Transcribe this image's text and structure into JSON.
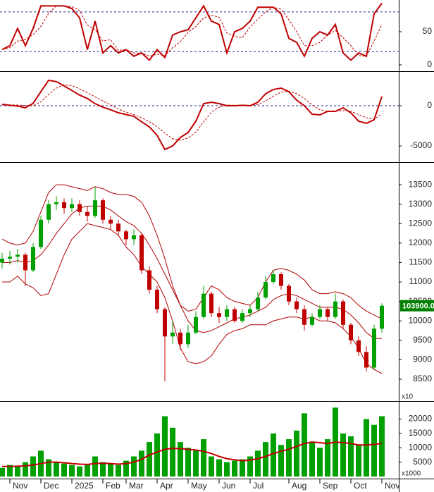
{
  "chart_data": [
    {
      "type": "line",
      "ylim": [
        -8.5,
        97.9
      ],
      "yticks": [
        0,
        50
      ],
      "reference_lines": [
        20,
        80
      ],
      "series": [
        {
          "color": "#c00000",
          "dashed": false,
          "values": [
            23,
            29,
            55,
            29,
            55,
            89,
            89,
            89,
            89,
            85,
            71,
            23,
            66,
            18,
            29,
            18,
            23,
            13,
            18,
            7,
            23,
            11,
            45,
            50,
            53,
            71,
            89,
            66,
            61,
            18,
            50,
            55,
            66,
            87,
            87,
            87,
            77,
            40,
            34,
            13,
            40,
            50,
            45,
            61,
            18,
            7,
            18,
            13,
            77,
            93
          ]
        },
        {
          "color": "#c00000",
          "dashed": true,
          "values": [
            23,
            26,
            36,
            38,
            46,
            58,
            78,
            89,
            89,
            88,
            82,
            60,
            53,
            36,
            38,
            22,
            23,
            18,
            18,
            13,
            16,
            14,
            26,
            35,
            49,
            58,
            71,
            75,
            72,
            48,
            43,
            41,
            57,
            69,
            80,
            87,
            84,
            68,
            50,
            29,
            29,
            34,
            45,
            52,
            41,
            29,
            14,
            13,
            36,
            61
          ]
        }
      ]
    },
    {
      "type": "line",
      "ylim": [
        -6840,
        4120
      ],
      "yticks": [
        -5000,
        0
      ],
      "reference_lines": [
        0
      ],
      "series": [
        {
          "color": "#c00000",
          "dashed": false,
          "values": [
            180,
            50,
            -50,
            -260,
            300,
            1750,
            3160,
            3000,
            2460,
            1900,
            1320,
            900,
            260,
            -180,
            -500,
            -880,
            -1100,
            -1320,
            -2000,
            -2630,
            -3680,
            -5440,
            -5000,
            -3950,
            -3330,
            -1930,
            260,
            440,
            260,
            0,
            0,
            50,
            0,
            440,
            1490,
            2020,
            2190,
            1750,
            700,
            0,
            -1050,
            -1140,
            -700,
            -700,
            -260,
            -880,
            -1930,
            -2190,
            -1750,
            1140
          ]
        },
        {
          "color": "#c00000",
          "dashed": true,
          "values": [
            100,
            100,
            80,
            20,
            0,
            500,
            1400,
            2200,
            2600,
            2500,
            2100,
            1600,
            1100,
            600,
            100,
            -400,
            -800,
            -1100,
            -1500,
            -2000,
            -2600,
            -3400,
            -4100,
            -4300,
            -4000,
            -3300,
            -2000,
            -800,
            -200,
            100,
            50,
            50,
            50,
            150,
            600,
            1200,
            1700,
            1800,
            1500,
            900,
            100,
            -500,
            -700,
            -700,
            -600,
            -700,
            -1100,
            -1500,
            -1700,
            -1000
          ]
        }
      ]
    },
    {
      "type": "candlestick",
      "ylim": [
        7975,
        14045
      ],
      "yticks": [
        8500,
        9000,
        9500,
        10000,
        10500,
        11000,
        11500,
        12000,
        12500,
        13000,
        13500
      ],
      "unit_label": "x10",
      "up_color": "#00a000",
      "down_color": "#c00000",
      "last_price": {
        "value": 10390,
        "label": "103900.0"
      },
      "open": [
        11500,
        11600,
        11650,
        11700,
        11300,
        11900,
        12600,
        13000,
        13050,
        12900,
        13000,
        12800,
        12700,
        13100,
        12600,
        12500,
        12300,
        12100,
        12200,
        11300,
        10800,
        10300,
        9600,
        9700,
        9400,
        9700,
        10100,
        10700,
        10200,
        10100,
        10300,
        10000,
        10200,
        10300,
        10600,
        11000,
        11200,
        10900,
        10500,
        10300,
        9900,
        10100,
        10300,
        10100,
        10500,
        9900,
        9500,
        9200,
        8800,
        9800
      ],
      "high": [
        11750,
        11800,
        11850,
        11750,
        12000,
        12700,
        13100,
        13200,
        13150,
        13150,
        13100,
        12950,
        13450,
        13150,
        12700,
        12600,
        12350,
        12350,
        12250,
        11400,
        10900,
        10350,
        10000,
        9800,
        9900,
        10250,
        10900,
        10750,
        10350,
        10400,
        10350,
        10300,
        10400,
        10750,
        11150,
        11300,
        11250,
        10950,
        10600,
        10400,
        10200,
        10400,
        10350,
        10700,
        10550,
        9950,
        9600,
        9350,
        9900,
        10450
      ],
      "low": [
        11350,
        11450,
        11500,
        10900,
        11250,
        11850,
        12500,
        12850,
        12750,
        12800,
        12700,
        12550,
        12650,
        12500,
        12350,
        12200,
        11950,
        11950,
        11200,
        10700,
        10200,
        8450,
        9400,
        9250,
        9300,
        9650,
        10050,
        10100,
        9950,
        10000,
        9950,
        9950,
        10100,
        10250,
        10550,
        10950,
        10800,
        10400,
        10200,
        9750,
        9850,
        10050,
        10000,
        10050,
        9800,
        9400,
        9100,
        8700,
        8750,
        9700
      ],
      "close": [
        11600,
        11650,
        11700,
        11300,
        11900,
        12600,
        13000,
        13050,
        12900,
        13000,
        12800,
        12700,
        13100,
        12600,
        12500,
        12300,
        12100,
        12200,
        11300,
        10800,
        10300,
        9600,
        9700,
        9400,
        9700,
        10100,
        10700,
        10200,
        10100,
        10300,
        10000,
        10200,
        10300,
        10600,
        11000,
        11200,
        10900,
        10500,
        10300,
        9900,
        10100,
        10300,
        10100,
        10500,
        9900,
        9500,
        9200,
        8800,
        9800,
        10390
      ],
      "series": [
        {
          "color": "#b00000",
          "dashed": false,
          "values": [
            12100,
            12000,
            11950,
            12000,
            12300,
            12800,
            13300,
            13500,
            13500,
            13450,
            13400,
            13350,
            13450,
            13400,
            13300,
            13250,
            13250,
            13200,
            13050,
            12700,
            12200,
            11600,
            10900,
            10400,
            10250,
            10300,
            10600,
            10900,
            10800,
            10600,
            10500,
            10450,
            10400,
            10600,
            11000,
            11300,
            11350,
            11300,
            11200,
            11050,
            10800,
            10700,
            10700,
            10750,
            10700,
            10600,
            10400,
            10250,
            10150,
            10050
          ]
        },
        {
          "color": "#b00000",
          "dashed": false,
          "values": [
            11500,
            11500,
            11550,
            11500,
            11550,
            11700,
            11950,
            12250,
            12500,
            12750,
            12900,
            12950,
            12950,
            12950,
            12850,
            12700,
            12550,
            12450,
            12250,
            11950,
            11600,
            11200,
            10800,
            10400,
            10000,
            9750,
            9700,
            9750,
            9850,
            9950,
            10050,
            10100,
            10150,
            10250,
            10350,
            10550,
            10650,
            10700,
            10650,
            10550,
            10450,
            10350,
            10350,
            10350,
            10300,
            10150,
            9950,
            9700,
            9550,
            9550
          ]
        },
        {
          "color": "#b00000",
          "dashed": false,
          "values": [
            11000,
            11000,
            11150,
            10950,
            10850,
            10650,
            10700,
            11200,
            11700,
            12100,
            12300,
            12500,
            12450,
            12400,
            12350,
            12200,
            11900,
            11700,
            11400,
            11200,
            11000,
            10600,
            10000,
            9300,
            8950,
            8900,
            8950,
            9100,
            9400,
            9650,
            9750,
            9800,
            9900,
            9900,
            9900,
            10000,
            10050,
            10100,
            10100,
            10050,
            10100,
            10000,
            10000,
            9950,
            9800,
            9600,
            9300,
            8900,
            8750,
            8650
          ]
        }
      ]
    },
    {
      "type": "bar",
      "ylim": [
        0,
        25300
      ],
      "yticks": [
        5000,
        10000,
        15000,
        20000
      ],
      "unit_label": "x1000",
      "color": "#00a000",
      "categories": [
        null,
        "Nov",
        null,
        null,
        null,
        "Dec",
        null,
        null,
        null,
        "2025",
        null,
        null,
        null,
        "Feb",
        null,
        null,
        "Mar",
        null,
        null,
        null,
        "Apr",
        null,
        null,
        null,
        "May",
        null,
        null,
        null,
        "Jun",
        null,
        null,
        null,
        "Jul",
        null,
        null,
        null,
        null,
        "Aug",
        null,
        null,
        null,
        "Sep",
        null,
        null,
        null,
        "Oct",
        null,
        null,
        null,
        "Nov"
      ],
      "values": [
        3000,
        4000,
        3500,
        5000,
        7000,
        9000,
        6000,
        5000,
        4500,
        4000,
        3500,
        4000,
        7000,
        5000,
        4500,
        4000,
        5500,
        7000,
        9000,
        12000,
        15000,
        21000,
        17000,
        12000,
        10000,
        9000,
        13000,
        7000,
        6000,
        5000,
        5500,
        6000,
        7000,
        9000,
        12000,
        15000,
        11000,
        13000,
        16000,
        22000,
        12000,
        10000,
        13000,
        24000,
        15000,
        14000,
        11000,
        20000,
        18000,
        21000
      ],
      "series": [
        {
          "color": "#c00000",
          "dashed": false,
          "values": [
            3500,
            3500,
            3600,
            3700,
            4000,
            4500,
            5000,
            5000,
            4800,
            4500,
            4300,
            4200,
            4500,
            4600,
            4500,
            4300,
            4500,
            5000,
            6000,
            7500,
            8500,
            9500,
            9800,
            9700,
            9500,
            9200,
            8800,
            8000,
            7000,
            6200,
            5800,
            5500,
            5700,
            6200,
            7000,
            8000,
            8800,
            9500,
            10500,
            11500,
            12000,
            11800,
            11500,
            12000,
            11800,
            11500,
            11000,
            11000,
            11200,
            11500
          ]
        }
      ]
    }
  ]
}
